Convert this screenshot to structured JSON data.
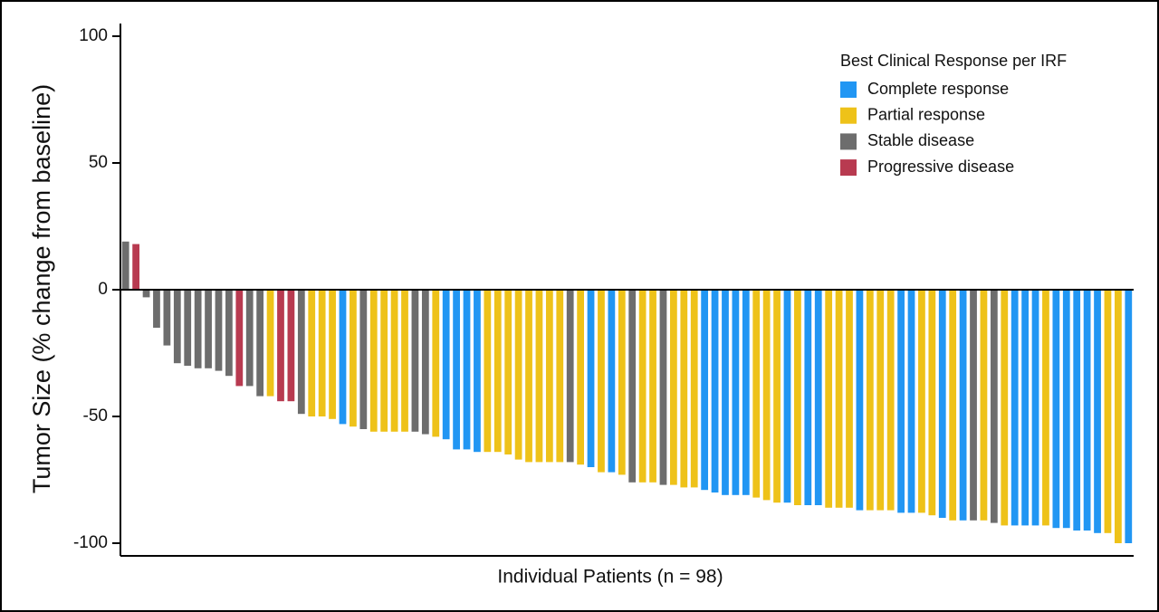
{
  "chart_data": {
    "type": "waterfall",
    "y_label": "Tumor Size (% change from baseline)",
    "x_label": "Individual Patients (n = 98)",
    "legend_title": "Best Clinical Response per IRF",
    "ylim": [
      -105,
      105
    ],
    "yticks": [
      -100,
      -50,
      0,
      50,
      100
    ],
    "series": [
      {
        "name": "Complete response",
        "color": "#2196f3",
        "values": [
          null,
          null,
          null,
          null,
          null,
          null,
          null,
          null,
          null,
          null,
          null,
          null,
          null,
          null,
          null,
          null,
          null,
          null,
          null,
          null,
          null,
          -53,
          null,
          null,
          null,
          null,
          null,
          null,
          null,
          null,
          null,
          -59,
          -63,
          -63,
          -64,
          null,
          null,
          null,
          null,
          null,
          null,
          null,
          null,
          null,
          null,
          -70,
          null,
          -72,
          null,
          null,
          null,
          null,
          null,
          null,
          null,
          null,
          -79,
          -80,
          -81,
          -81,
          -81,
          null,
          null,
          null,
          -84,
          null,
          -85,
          -85,
          null,
          null,
          null,
          -87,
          null,
          null,
          null,
          -88,
          -88,
          null,
          null,
          -90,
          null,
          -91,
          null,
          null,
          null,
          null,
          -93,
          -93,
          -93,
          null,
          -94,
          -94,
          -95,
          -95,
          -96,
          null,
          null,
          -100
        ]
      },
      {
        "name": "Partial response",
        "color": "#eec219",
        "values": [
          null,
          null,
          null,
          null,
          null,
          null,
          null,
          null,
          null,
          null,
          null,
          null,
          null,
          null,
          -42,
          null,
          null,
          null,
          -50,
          -50,
          -51,
          null,
          -54,
          null,
          -56,
          -56,
          -56,
          -56,
          null,
          null,
          -58,
          null,
          null,
          null,
          null,
          -64,
          -64,
          -65,
          -67,
          -68,
          -68,
          -68,
          -68,
          null,
          -69,
          null,
          -72,
          null,
          -73,
          null,
          -76,
          -76,
          null,
          -77,
          -78,
          -78,
          null,
          null,
          null,
          null,
          null,
          -82,
          -83,
          -84,
          null,
          -85,
          null,
          null,
          -86,
          -86,
          -86,
          null,
          -87,
          -87,
          -87,
          null,
          null,
          -88,
          -89,
          null,
          -91,
          null,
          null,
          -91,
          null,
          -93,
          null,
          null,
          null,
          -93,
          null,
          null,
          null,
          null,
          null,
          -96,
          -100,
          null
        ]
      },
      {
        "name": "Stable disease",
        "color": "#6d6d6d",
        "values": [
          19,
          null,
          -3,
          -15,
          -22,
          -29,
          -30,
          -31,
          -31,
          -32,
          -34,
          null,
          -38,
          -42,
          null,
          null,
          null,
          -49,
          null,
          null,
          null,
          null,
          null,
          -55,
          null,
          null,
          null,
          null,
          -56,
          -57,
          null,
          null,
          null,
          null,
          null,
          null,
          null,
          null,
          null,
          null,
          null,
          null,
          null,
          -68,
          null,
          null,
          null,
          null,
          null,
          -76,
          null,
          null,
          -77,
          null,
          null,
          null,
          null,
          null,
          null,
          null,
          null,
          null,
          null,
          null,
          null,
          null,
          null,
          null,
          null,
          null,
          null,
          null,
          null,
          null,
          null,
          null,
          null,
          null,
          null,
          null,
          null,
          null,
          -91,
          null,
          -92,
          null,
          null,
          null,
          null,
          null,
          null,
          null,
          null,
          null,
          null,
          null,
          null,
          null
        ]
      },
      {
        "name": "Progressive disease",
        "color": "#b83a50",
        "values": [
          null,
          18,
          null,
          null,
          null,
          null,
          null,
          null,
          null,
          null,
          null,
          -38,
          null,
          null,
          null,
          -44,
          -44,
          null,
          null,
          null,
          null,
          null,
          null,
          null,
          null,
          null,
          null,
          null,
          null,
          null,
          null,
          null,
          null,
          null,
          null,
          null,
          null,
          null,
          null,
          null,
          null,
          null,
          null,
          null,
          null,
          null,
          null,
          null,
          null,
          null,
          null,
          null,
          null,
          null,
          null,
          null,
          null,
          null,
          null,
          null,
          null,
          null,
          null,
          null,
          null,
          null,
          null,
          null,
          null,
          null,
          null,
          null,
          null,
          null,
          null,
          null,
          null,
          null,
          null,
          null,
          null,
          null,
          null,
          null,
          null,
          null,
          null,
          null,
          null,
          null,
          null,
          null,
          null,
          null,
          null,
          null,
          null,
          null
        ]
      }
    ]
  }
}
